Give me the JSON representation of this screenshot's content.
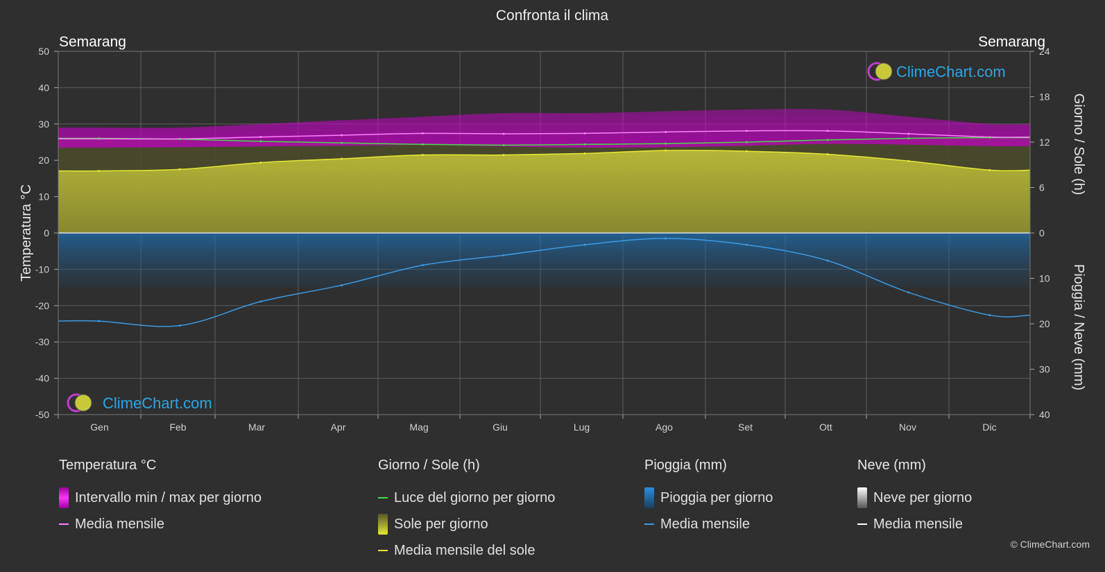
{
  "chart_data": {
    "type": "line",
    "title": "Confronta il clima",
    "location_left": "Semarang",
    "location_right": "Semarang",
    "categories": [
      "Gen",
      "Feb",
      "Mar",
      "Apr",
      "Mag",
      "Giu",
      "Lug",
      "Ago",
      "Set",
      "Ott",
      "Nov",
      "Dic"
    ],
    "y_left": {
      "label": "Temperatura °C",
      "range": [
        -50,
        50
      ],
      "ticks": [
        50,
        40,
        30,
        20,
        10,
        0,
        -10,
        -20,
        -30,
        -40,
        -50
      ]
    },
    "y_right_top": {
      "label": "Giorno / Sole (h)",
      "range": [
        0,
        24
      ],
      "ticks": [
        24,
        18,
        12,
        6,
        0
      ]
    },
    "y_right_bottom": {
      "label": "Pioggia / Neve (mm)",
      "range": [
        0,
        40
      ],
      "ticks": [
        0,
        10,
        20,
        30,
        40
      ]
    },
    "series": [
      {
        "name": "Media mensile",
        "group": "temperature",
        "unit": "°C",
        "color": "#ff80ff",
        "values": [
          25.9,
          25.9,
          26.4,
          26.9,
          27.4,
          27.3,
          27.4,
          27.8,
          28.1,
          28.1,
          27.3,
          26.4
        ]
      },
      {
        "name": "Luce del giorno per giorno",
        "group": "daylight",
        "unit": "h",
        "color": "#44dd44",
        "values": [
          12.5,
          12.4,
          12.1,
          11.9,
          11.7,
          11.6,
          11.7,
          11.8,
          12.0,
          12.3,
          12.5,
          12.6
        ]
      },
      {
        "name": "Media mensile del sole",
        "group": "sun",
        "unit": "h",
        "color": "#e8e832",
        "values": [
          8.2,
          8.4,
          9.3,
          9.8,
          10.3,
          10.3,
          10.5,
          10.9,
          10.8,
          10.4,
          9.5,
          8.3
        ]
      },
      {
        "name": "Media mensile",
        "group": "rain",
        "unit": "mm",
        "color": "#3a9be6",
        "values": [
          19.4,
          20.4,
          15.1,
          11.5,
          7.1,
          4.9,
          2.6,
          1.2,
          2.6,
          6.1,
          13.1,
          18.1
        ]
      }
    ],
    "temp_range_band": {
      "min": [
        23.5,
        23.6,
        23.8,
        24.0,
        24.2,
        23.8,
        23.5,
        23.6,
        24.0,
        24.5,
        24.3,
        23.9
      ],
      "max": [
        29.0,
        29.0,
        30.0,
        31.0,
        32.0,
        33.0,
        33.0,
        33.5,
        34.0,
        34.0,
        32.0,
        30.0
      ]
    },
    "grid": true
  },
  "legend": {
    "groups": [
      {
        "title": "Temperatura °C",
        "items": [
          {
            "label": "Intervallo min / max per giorno",
            "swatch": "box",
            "color": "#e600e6"
          },
          {
            "label": "Media mensile",
            "swatch": "line",
            "color": "#ff80ff"
          }
        ]
      },
      {
        "title": "Giorno / Sole (h)",
        "items": [
          {
            "label": "Luce del giorno per giorno",
            "swatch": "line",
            "color": "#44dd44"
          },
          {
            "label": "Sole per giorno",
            "swatch": "box",
            "color": "#d9d93a"
          },
          {
            "label": "Media mensile del sole",
            "swatch": "line",
            "color": "#e8e832"
          }
        ]
      },
      {
        "title": "Pioggia (mm)",
        "items": [
          {
            "label": "Pioggia per giorno",
            "swatch": "box",
            "color": "#2a8fe0"
          },
          {
            "label": "Media mensile",
            "swatch": "line",
            "color": "#3a9be6"
          }
        ]
      },
      {
        "title": "Neve (mm)",
        "items": [
          {
            "label": "Neve per giorno",
            "swatch": "box",
            "color": "#dddddd"
          },
          {
            "label": "Media mensile",
            "swatch": "line",
            "color": "#ffffff"
          }
        ]
      }
    ]
  },
  "logo_text": "ClimeChart.com",
  "copyright": "© ClimeChart.com"
}
